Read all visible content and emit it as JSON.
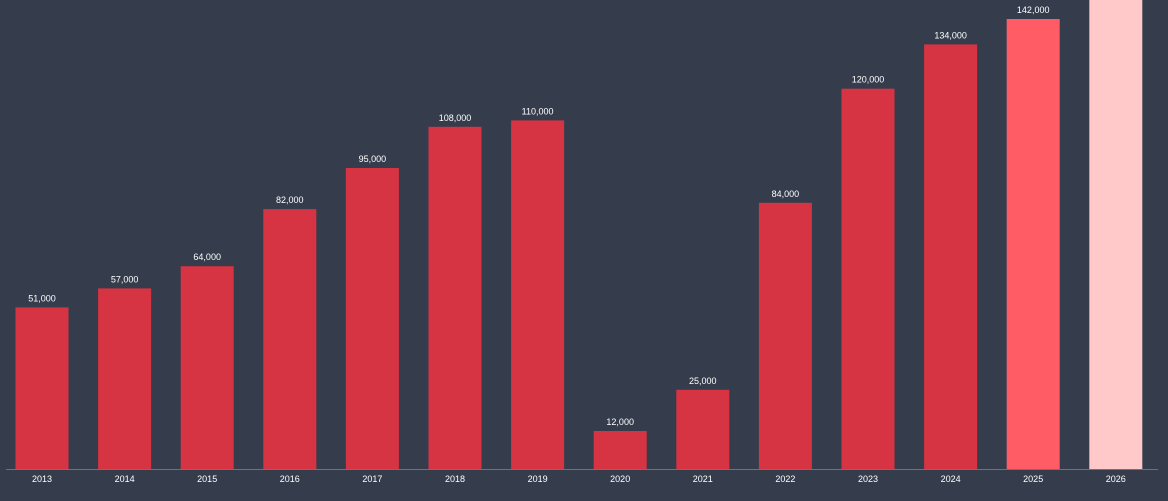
{
  "colors": {
    "background": "#353d4d",
    "bar": "#d63343",
    "bar_highlight": "#ff5c66",
    "bar_projected": "#ffc9c9",
    "label": "#ffffff",
    "axis_line": "#6b7280"
  },
  "chart_data": {
    "type": "bar",
    "categories": [
      "2013",
      "2014",
      "2015",
      "2016",
      "2017",
      "2018",
      "2019",
      "2020",
      "2021",
      "2022",
      "2023",
      "2024",
      "2025",
      "2026"
    ],
    "values": [
      51000,
      57000,
      64000,
      82000,
      95000,
      108000,
      110000,
      12000,
      25000,
      84000,
      120000,
      134000,
      142000,
      null
    ],
    "value_labels": [
      "51,000",
      "57,000",
      "64,000",
      "82,000",
      "95,000",
      "108,000",
      "110,000",
      "12,000",
      "25,000",
      "84,000",
      "120,000",
      "134,000",
      "142,000",
      ""
    ],
    "bar_styles": [
      "normal",
      "normal",
      "normal",
      "normal",
      "normal",
      "normal",
      "normal",
      "normal",
      "normal",
      "normal",
      "normal",
      "normal",
      "highlight",
      "projected"
    ],
    "title": "",
    "xlabel": "",
    "ylabel": "",
    "ylim": [
      0,
      148000
    ],
    "grid": false,
    "legend": "none"
  }
}
